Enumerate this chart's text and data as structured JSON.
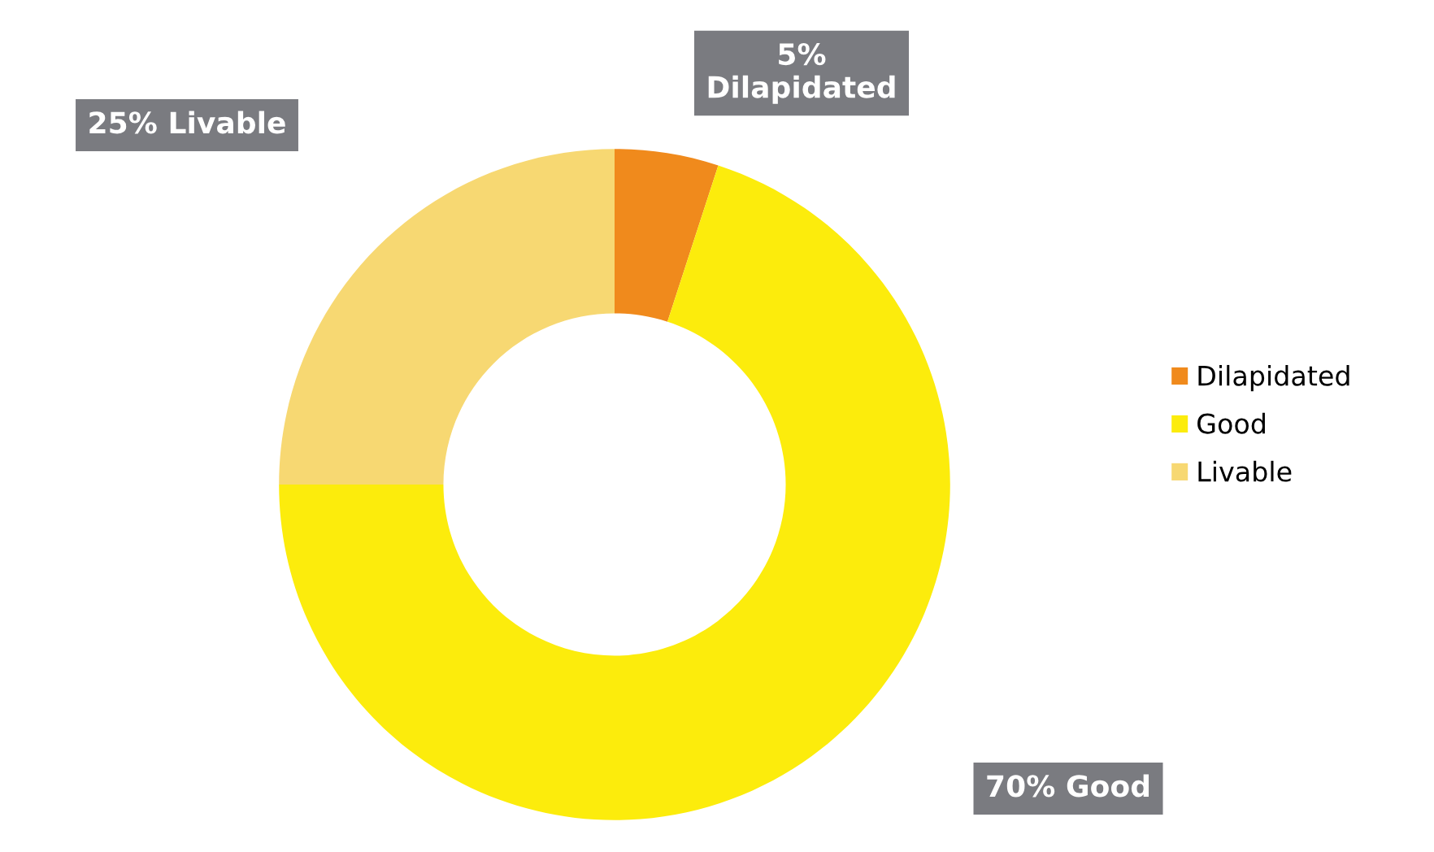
{
  "chart_data": {
    "type": "donut",
    "categories": [
      "Dilapidated",
      "Good",
      "Livable"
    ],
    "values": [
      5,
      70,
      25
    ],
    "colors": [
      "#f08a1c",
      "#fcec0c",
      "#f7d872"
    ],
    "value_labels": [
      "5%\nDilapidated",
      "70% Good",
      "25% Livable"
    ],
    "legend": "right"
  }
}
